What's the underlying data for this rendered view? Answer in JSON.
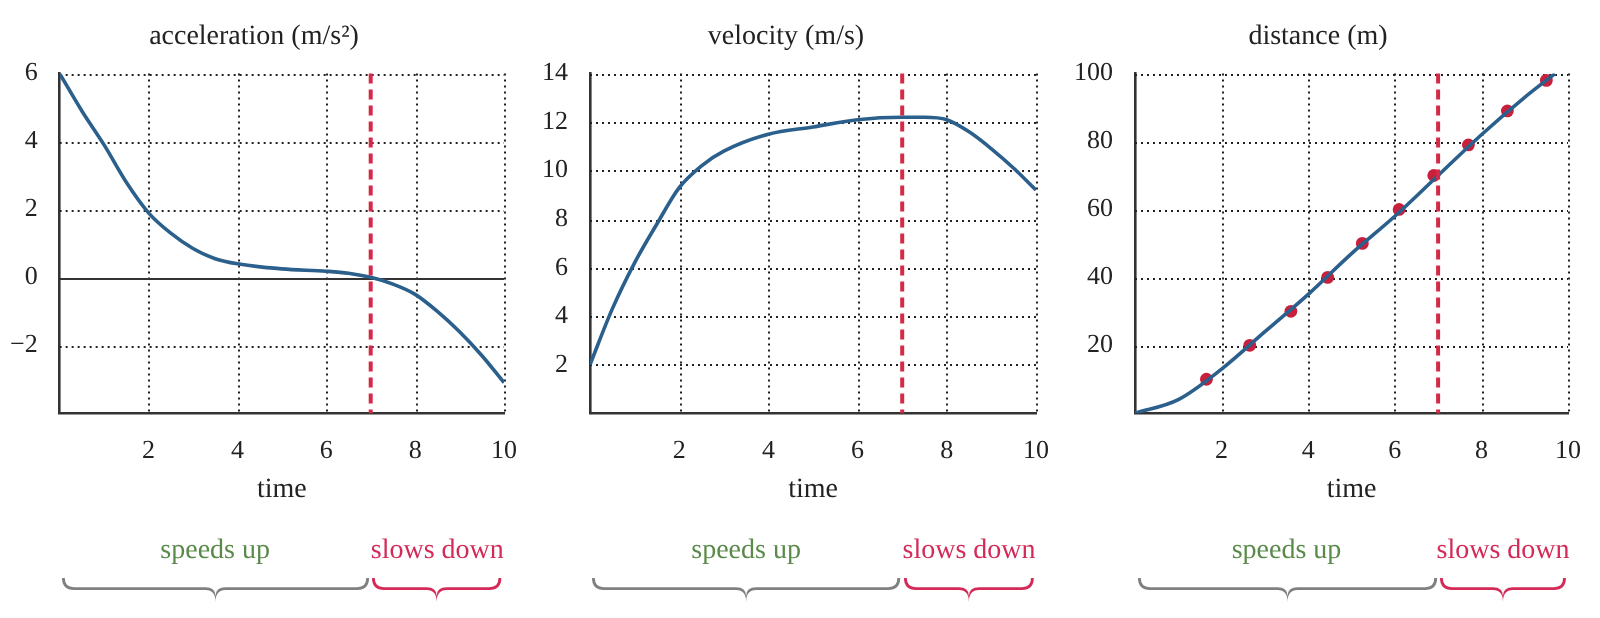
{
  "chart_data": [
    {
      "type": "line",
      "title": "acceleration (m/s²)",
      "xlabel": "time",
      "xlim": [
        0,
        10
      ],
      "xticks": [
        2,
        4,
        6,
        8,
        10
      ],
      "ylim": [
        -4,
        6
      ],
      "yticks": [
        {
          "value": -2,
          "label": "−2"
        },
        0,
        2,
        4,
        6
      ],
      "grid": true,
      "series": [
        {
          "type": "line",
          "color": "#2b5f8c",
          "marker": "none",
          "x": [
            0,
            0.5,
            1,
            1.5,
            2,
            2.5,
            3,
            3.5,
            4,
            5,
            6,
            6.5,
            7,
            7.5,
            8,
            8.5,
            9,
            9.5,
            10
          ],
          "values": [
            6,
            4.9,
            3.9,
            2.8,
            1.9,
            1.3,
            0.85,
            0.55,
            0.4,
            0.25,
            0.18,
            0.12,
            0,
            -0.2,
            -0.5,
            -1,
            -1.6,
            -2.3,
            -3.1
          ]
        }
      ],
      "ref_lines": [
        {
          "axis": "x",
          "value": 7,
          "color": "#d42a48",
          "line_style": "dashed"
        }
      ],
      "annotations": [
        "speeds up",
        "slows down"
      ]
    },
    {
      "type": "line",
      "title": "velocity (m/s)",
      "xlabel": "time",
      "xlim": [
        0,
        10
      ],
      "xticks": [
        2,
        4,
        6,
        8,
        10
      ],
      "ylim": [
        0,
        14
      ],
      "yticks": [
        2,
        4,
        6,
        8,
        10,
        12,
        14
      ],
      "grid": true,
      "series": [
        {
          "type": "line",
          "color": "#2b5f8c",
          "marker": "none",
          "x": [
            0,
            0.5,
            1,
            1.5,
            2,
            2.5,
            3,
            4,
            5,
            6,
            7,
            7.5,
            8,
            8.5,
            9,
            9.5,
            10
          ],
          "values": [
            2,
            4.3,
            6.2,
            7.8,
            9.3,
            10.2,
            10.8,
            11.5,
            11.8,
            12.1,
            12.2,
            12.2,
            12.1,
            11.6,
            10.9,
            10.1,
            9.2
          ]
        }
      ],
      "ref_lines": [
        {
          "axis": "x",
          "value": 7,
          "color": "#d42a48",
          "line_style": "dashed"
        }
      ],
      "annotations": [
        "speeds up",
        "slows down"
      ]
    },
    {
      "type": "line",
      "title": "distance (m)",
      "xlabel": "time",
      "xlim": [
        0,
        10
      ],
      "xticks": [
        2,
        4,
        6,
        8,
        10
      ],
      "ylim": [
        0,
        100
      ],
      "yticks": [
        20,
        40,
        60,
        80,
        100
      ],
      "grid": true,
      "series": [
        {
          "type": "line",
          "color": "#2b5f8c",
          "marker": "none",
          "x": [
            0,
            1,
            2,
            3,
            4,
            5,
            6,
            7,
            8,
            9,
            9.7
          ],
          "values": [
            0,
            4,
            13,
            24,
            35,
            47,
            58,
            70,
            82,
            93,
            100
          ]
        },
        {
          "type": "scatter",
          "color": "#c8203c",
          "marker": "circle",
          "x": [
            1.65,
            2.65,
            3.6,
            4.45,
            5.25,
            6.1,
            6.9,
            7.7,
            8.6,
            9.5
          ],
          "values": [
            10,
            20,
            30,
            40,
            50,
            60,
            70,
            79,
            89,
            98
          ]
        }
      ],
      "ref_lines": [
        {
          "axis": "x",
          "value": 7,
          "color": "#d42a48",
          "line_style": "dashed"
        }
      ],
      "annotations": [
        "speeds up",
        "slows down"
      ]
    }
  ]
}
